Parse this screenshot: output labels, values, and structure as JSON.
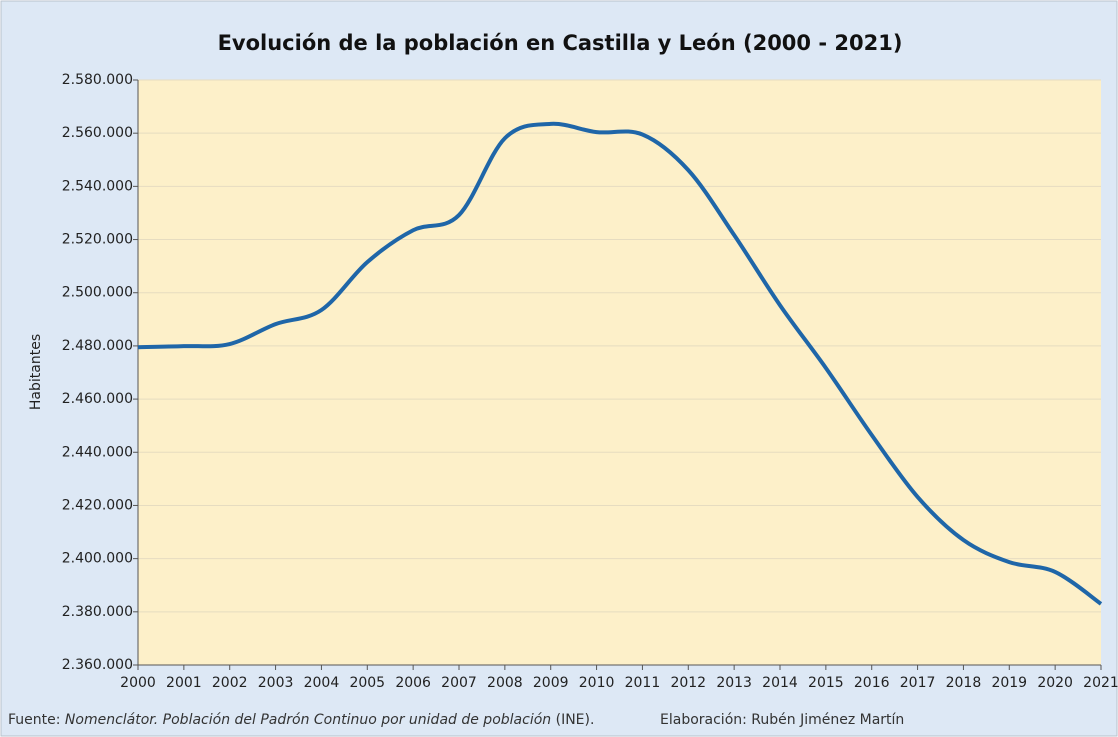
{
  "chart_data": {
    "type": "line",
    "title": "Evolución de la población en Castilla y León (2000 - 2021)",
    "y_label": "Habitantes",
    "x": [
      2000,
      2001,
      2002,
      2003,
      2004,
      2005,
      2006,
      2007,
      2008,
      2009,
      2010,
      2011,
      2012,
      2013,
      2014,
      2015,
      2016,
      2017,
      2018,
      2019,
      2020,
      2021
    ],
    "series": [
      {
        "name": "Habitantes",
        "color": "#1f66a8",
        "values": [
          2479500,
          2479900,
          2480700,
          2488200,
          2493500,
          2511500,
          2523500,
          2529200,
          2558100,
          2563500,
          2560400,
          2559500,
          2546100,
          2521700,
          2495300,
          2471700,
          2446500,
          2423200,
          2407000,
          2398700,
          2395000,
          2383000
        ]
      }
    ],
    "xlim": [
      2000,
      2021
    ],
    "xticks": [
      2000,
      2001,
      2002,
      2003,
      2004,
      2005,
      2006,
      2007,
      2008,
      2009,
      2010,
      2011,
      2012,
      2013,
      2014,
      2015,
      2016,
      2017,
      2018,
      2019,
      2020,
      2021
    ],
    "ylim": [
      2360000,
      2580000
    ],
    "yticks": [
      {
        "value": 2360000,
        "label": "2.360.000"
      },
      {
        "value": 2380000,
        "label": "2.380.000"
      },
      {
        "value": 2400000,
        "label": "2.400.000"
      },
      {
        "value": 2420000,
        "label": "2.420.000"
      },
      {
        "value": 2440000,
        "label": "2.440.000"
      },
      {
        "value": 2460000,
        "label": "2.460.000"
      },
      {
        "value": 2480000,
        "label": "2.480.000"
      },
      {
        "value": 2500000,
        "label": "2.500.000"
      },
      {
        "value": 2520000,
        "label": "2.520.000"
      },
      {
        "value": 2540000,
        "label": "2.540.000"
      },
      {
        "value": 2560000,
        "label": "2.560.000"
      },
      {
        "value": 2580000,
        "label": "2.580.000"
      }
    ],
    "grid": true,
    "source": {
      "prefix": "Fuente: ",
      "work": "Nomenclátor. Población del Padrón Continuo por unidad de población",
      "suffix": " (INE).",
      "credit": "Elaboración: Rubén Jiménez Martín"
    }
  }
}
